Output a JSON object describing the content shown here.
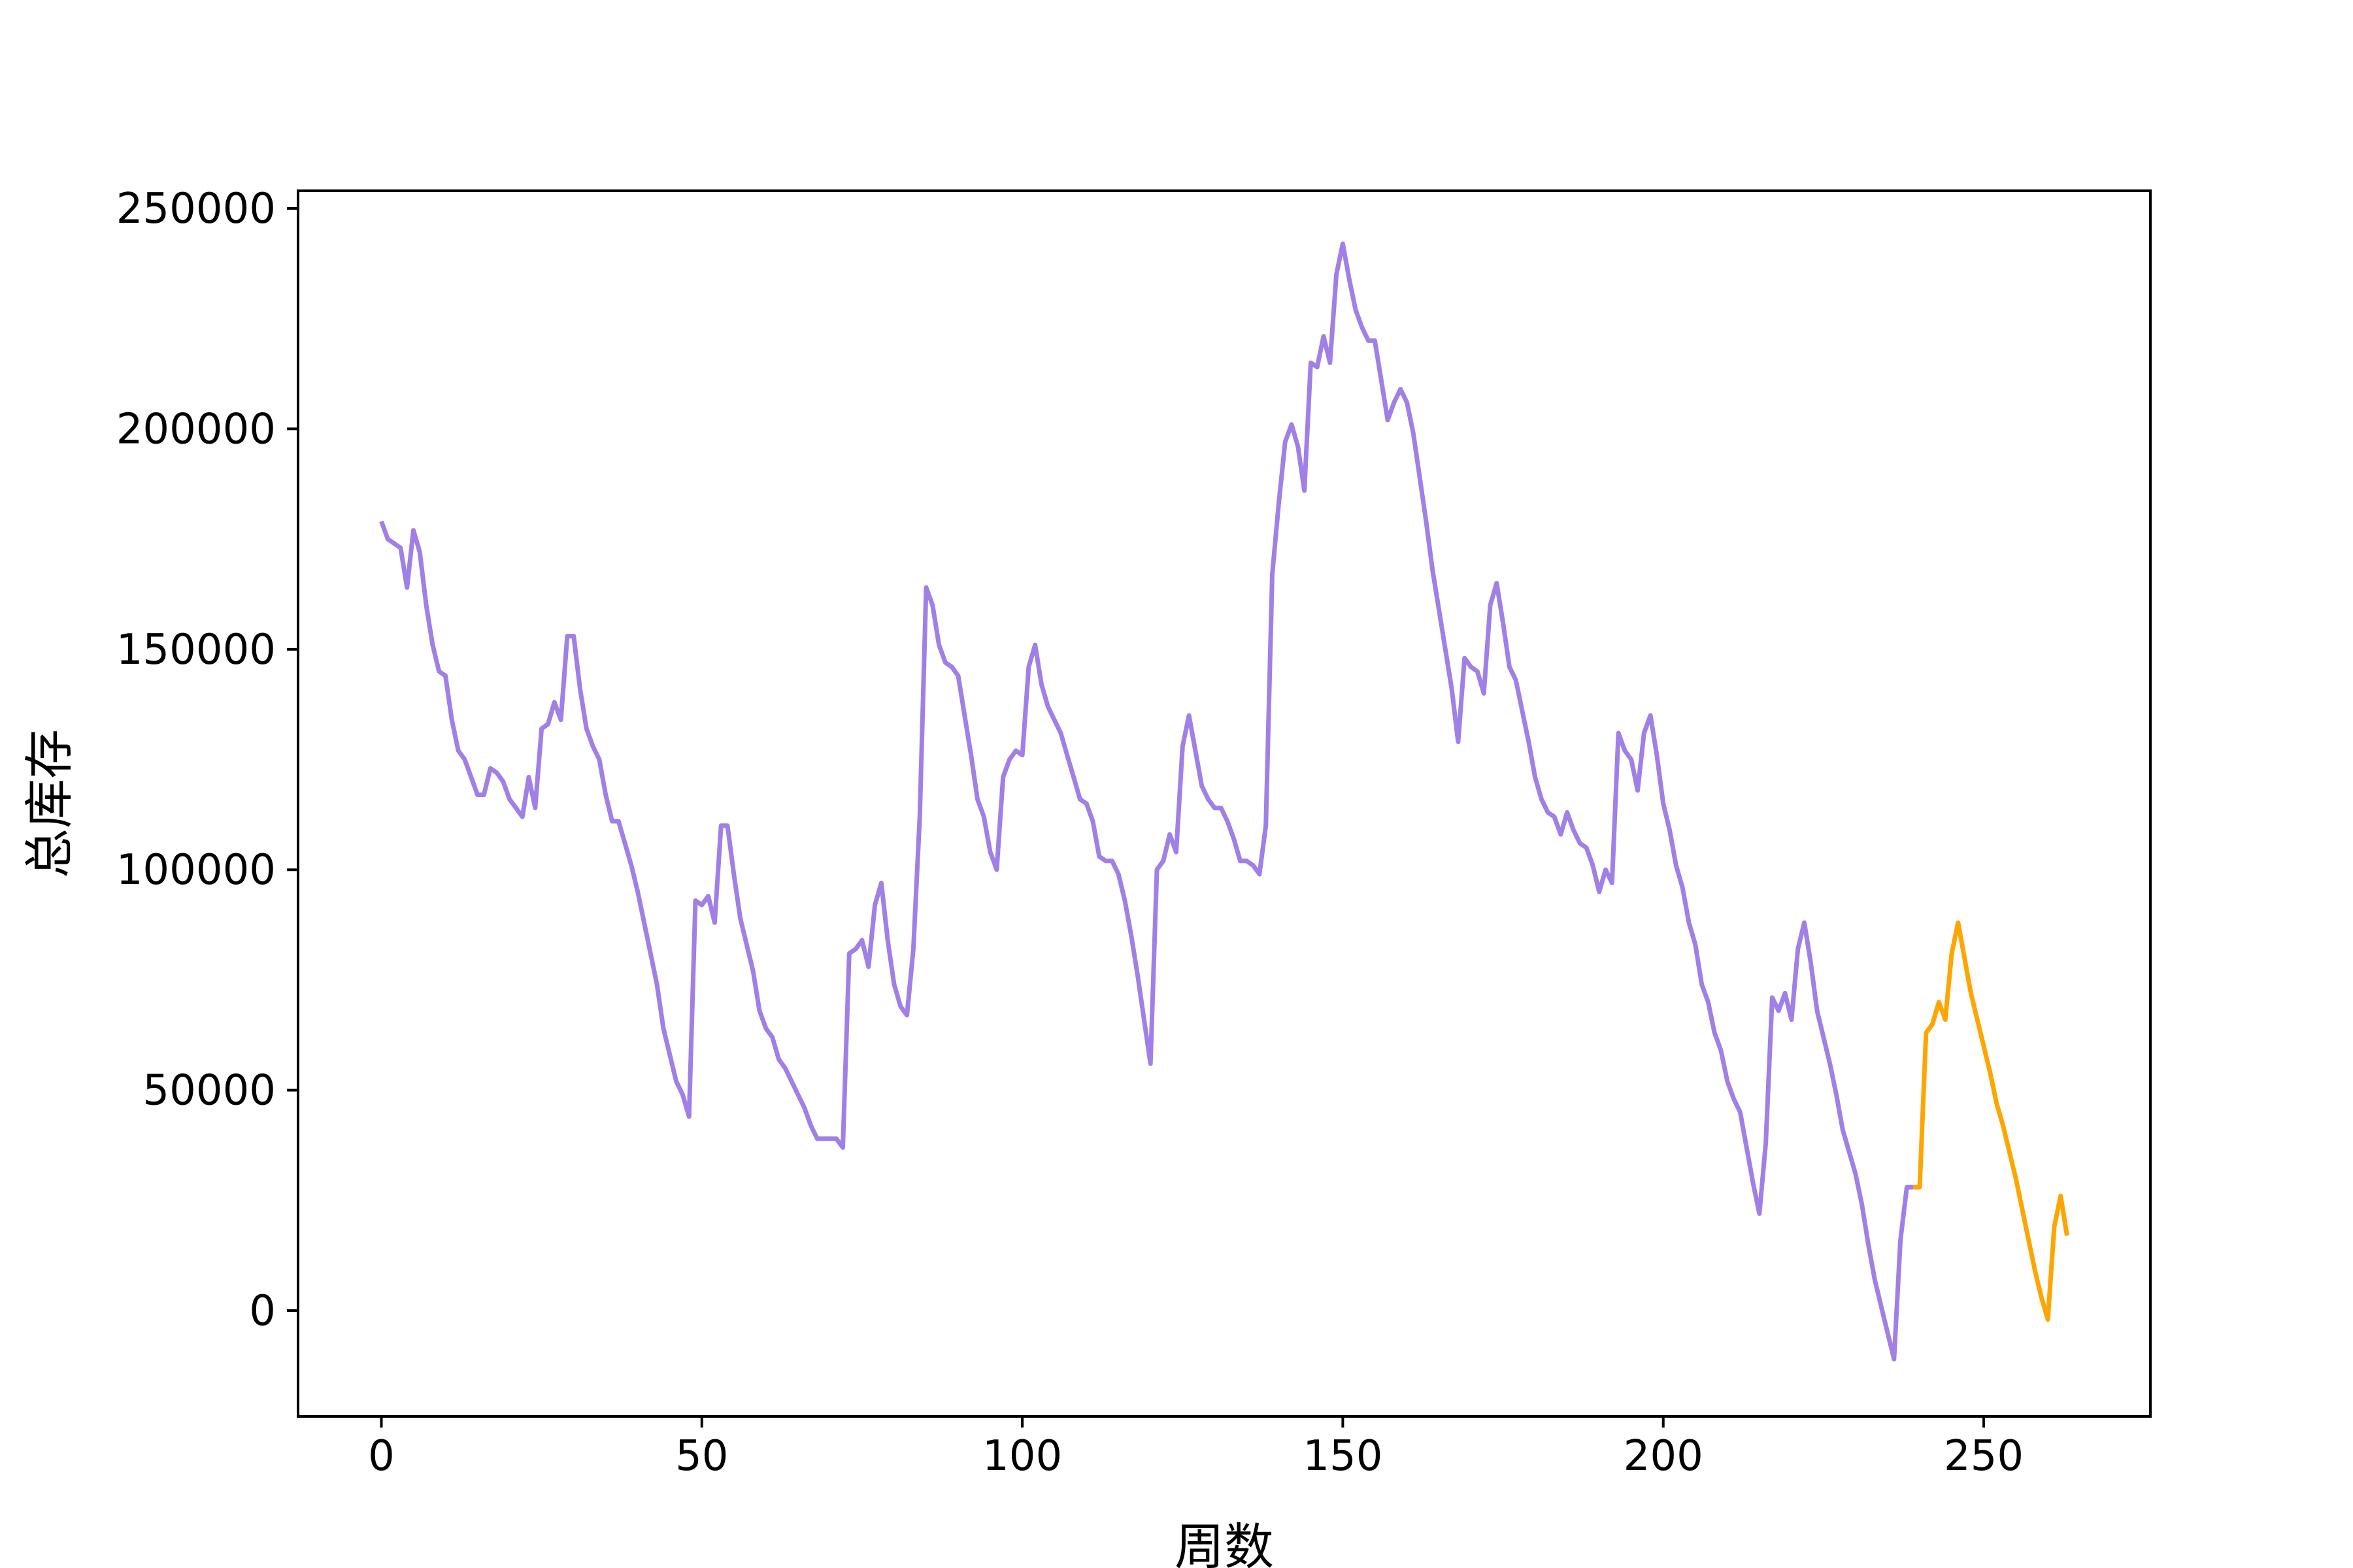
{
  "chart_data": {
    "type": "line",
    "title": "",
    "xlabel": "周数",
    "ylabel": "总库存",
    "xlim": [
      -13,
      276
    ],
    "ylim": [
      -24000,
      254000
    ],
    "xticks": [
      0,
      50,
      100,
      150,
      200,
      250
    ],
    "yticks": [
      0,
      50000,
      100000,
      150000,
      200000,
      250000
    ],
    "grid": false,
    "colors": {
      "history": "#a080e6",
      "forecast": "#ffa500"
    },
    "series": [
      {
        "x": [
          0,
          1,
          2,
          3,
          4,
          5,
          6,
          7,
          8,
          9,
          10,
          11,
          12,
          13,
          14,
          15,
          16,
          17,
          18,
          19,
          20,
          21,
          22,
          23,
          24,
          25,
          26,
          27,
          28,
          29,
          30,
          31,
          32,
          33,
          34,
          35,
          36,
          37,
          38,
          39,
          40,
          41,
          42,
          43,
          44,
          45,
          46,
          47,
          48,
          49,
          50,
          51,
          52,
          53,
          54,
          55,
          56,
          57,
          58,
          59,
          60,
          61,
          62,
          63,
          64,
          65,
          66,
          67,
          68,
          69,
          70,
          71,
          72,
          73,
          74,
          75,
          76,
          77,
          78,
          79,
          80,
          81,
          82,
          83,
          84,
          85,
          86,
          87,
          88,
          89,
          90,
          91,
          92,
          93,
          94,
          95,
          96,
          97,
          98,
          99,
          100,
          101,
          102,
          103,
          104,
          105,
          106,
          107,
          108,
          109,
          110,
          111,
          112,
          113,
          114,
          115,
          116,
          117,
          118,
          119,
          120,
          121,
          122,
          123,
          124,
          125,
          126,
          127,
          128,
          129,
          130,
          131,
          132,
          133,
          134,
          135,
          136,
          137,
          138,
          139,
          140,
          141,
          142,
          143,
          144,
          145,
          146,
          147,
          148,
          149,
          150,
          151,
          152,
          153,
          154,
          155,
          156,
          157,
          158,
          159,
          160,
          161,
          162,
          163,
          164,
          165,
          166,
          167,
          168,
          169,
          170,
          171,
          172,
          173,
          174,
          175,
          176,
          177,
          178,
          179,
          180,
          181,
          182,
          183,
          184,
          185,
          186,
          187,
          188,
          189,
          190,
          191,
          192,
          193,
          194,
          195,
          196,
          197,
          198,
          199,
          200,
          201,
          202,
          203,
          204,
          205,
          206,
          207,
          208,
          209,
          210,
          211,
          212,
          213,
          214,
          215,
          216,
          217,
          218,
          219,
          220,
          221,
          222,
          223,
          224,
          225,
          226,
          227,
          228,
          229,
          230,
          231,
          232,
          233,
          234,
          235,
          236,
          237,
          238,
          239
        ],
        "values": [
          179000,
          175000,
          174000,
          173000,
          164000,
          177000,
          172000,
          160000,
          151000,
          145000,
          144000,
          134000,
          127000,
          125000,
          121000,
          117000,
          117000,
          123000,
          122000,
          120000,
          116000,
          114000,
          112000,
          121000,
          114000,
          132000,
          133000,
          138000,
          134000,
          153000,
          153000,
          141000,
          132000,
          128000,
          125000,
          117000,
          111000,
          111000,
          106000,
          101000,
          95000,
          88000,
          81000,
          74000,
          64000,
          58000,
          52000,
          49000,
          44000,
          93000,
          92000,
          94000,
          88000,
          110000,
          110000,
          99000,
          89000,
          83000,
          77000,
          68000,
          64000,
          62000,
          57000,
          55000,
          52000,
          49000,
          46000,
          42000,
          39000,
          39000,
          39000,
          39000,
          37000,
          81000,
          82000,
          84000,
          78000,
          92000,
          97000,
          84000,
          74000,
          69000,
          67000,
          82000,
          112000,
          164000,
          160000,
          151000,
          147000,
          146000,
          144000,
          135000,
          126000,
          116000,
          112000,
          104000,
          100000,
          121000,
          125000,
          127000,
          126000,
          146000,
          151000,
          142000,
          137000,
          134000,
          131000,
          126000,
          121000,
          116000,
          115000,
          111000,
          103000,
          102000,
          102000,
          99000,
          93000,
          85000,
          76000,
          66000,
          56000,
          100000,
          102000,
          108000,
          104000,
          128000,
          135000,
          127000,
          119000,
          116000,
          114000,
          114000,
          111000,
          107000,
          102000,
          102000,
          101000,
          99000,
          110000,
          167000,
          183000,
          197000,
          201000,
          196000,
          186000,
          215000,
          214000,
          221000,
          215000,
          235000,
          242000,
          234000,
          227000,
          223000,
          220000,
          220000,
          211000,
          202000,
          206000,
          209000,
          206000,
          199000,
          189000,
          179000,
          168000,
          159000,
          150000,
          141000,
          129000,
          148000,
          146000,
          145000,
          140000,
          160000,
          165000,
          156000,
          146000,
          143000,
          136000,
          129000,
          121000,
          116000,
          113000,
          112000,
          108000,
          113000,
          109000,
          106000,
          105000,
          101000,
          95000,
          100000,
          97000,
          131000,
          127000,
          125000,
          118000,
          131000,
          135000,
          126000,
          115000,
          109000,
          101000,
          96000,
          88000,
          83000,
          74000,
          70000,
          63000,
          59000,
          52000,
          48000,
          45000,
          37000,
          29000,
          22000,
          38000,
          71000,
          68000,
          72000,
          66000,
          82000,
          88000,
          79000,
          68000,
          62000,
          56000,
          49000,
          41000,
          36000,
          31000,
          24000,
          15000,
          7000,
          1000,
          -5000,
          -11000,
          16000,
          28000,
          28000
        ]
      },
      {
        "x": [
          239,
          240,
          241,
          242,
          243,
          244,
          245,
          246,
          247,
          248,
          249,
          250,
          251,
          252,
          253,
          254,
          255,
          256,
          257,
          258,
          259,
          260,
          261,
          262,
          263
        ],
        "values": [
          28000,
          28000,
          63000,
          65000,
          70000,
          66000,
          81000,
          88000,
          80000,
          72000,
          66000,
          60000,
          54000,
          47000,
          42000,
          36000,
          30000,
          23000,
          16000,
          9000,
          3000,
          -2000,
          19000,
          26000,
          17000
        ]
      }
    ]
  }
}
